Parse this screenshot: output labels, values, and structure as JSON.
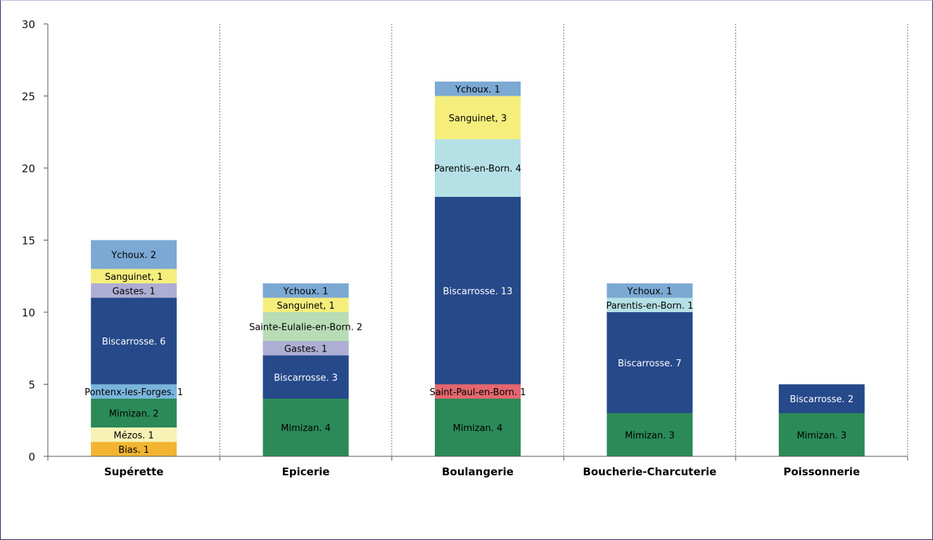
{
  "chart_data": {
    "type": "bar",
    "stacked": true,
    "categories": [
      "Supérette",
      "Epicerie",
      "Boulangerie",
      "Boucherie-Charcuterie",
      "Poissonnerie"
    ],
    "ylim": [
      0,
      30
    ],
    "yticks": [
      0,
      5,
      10,
      15,
      20,
      25,
      30
    ],
    "grid": "vertical dotted separators between categories",
    "stacks": [
      [
        {
          "label": "Bias. 1",
          "value": 1,
          "color": "#f2b431",
          "text_color": "#000000"
        },
        {
          "label": "Mézos. 1",
          "value": 1,
          "color": "#f7f3b6",
          "text_color": "#000000"
        },
        {
          "label": "Mimizan. 2",
          "value": 2,
          "color": "#2b8a57",
          "text_color": "#000000"
        },
        {
          "label": "Pontenx-les-Forges. 1",
          "value": 1,
          "color": "#7ab5dc",
          "text_color": "#000000"
        },
        {
          "label": "Biscarrosse. 6",
          "value": 6,
          "color": "#26498a",
          "text_color": "#ffffff"
        },
        {
          "label": "Gastes. 1",
          "value": 1,
          "color": "#aeaed4",
          "text_color": "#000000"
        },
        {
          "label": "Sanguinet, 1",
          "value": 1,
          "color": "#f5ee7d",
          "text_color": "#000000"
        },
        {
          "label": "Ychoux. 2",
          "value": 2,
          "color": "#7ba9d4",
          "text_color": "#000000"
        }
      ],
      [
        {
          "label": "Mimizan. 4",
          "value": 4,
          "color": "#2b8a57",
          "text_color": "#000000"
        },
        {
          "label": "Biscarrosse. 3",
          "value": 3,
          "color": "#26498a",
          "text_color": "#ffffff"
        },
        {
          "label": "Gastes. 1",
          "value": 1,
          "color": "#aeaed4",
          "text_color": "#000000"
        },
        {
          "label": "Sainte-Eulalie-en-Born. 2",
          "value": 2,
          "color": "#b8dcb6",
          "text_color": "#000000"
        },
        {
          "label": "Sanguinet, 1",
          "value": 1,
          "color": "#f5ee7d",
          "text_color": "#000000"
        },
        {
          "label": "Ychoux. 1",
          "value": 1,
          "color": "#7ba9d4",
          "text_color": "#000000"
        }
      ],
      [
        {
          "label": "Mimizan. 4",
          "value": 4,
          "color": "#2b8a57",
          "text_color": "#000000"
        },
        {
          "label": "Saint-Paul-en-Born. 1",
          "value": 1,
          "color": "#e4676e",
          "text_color": "#000000"
        },
        {
          "label": "Biscarrosse. 13",
          "value": 13,
          "color": "#26498a",
          "text_color": "#ffffff"
        },
        {
          "label": "Parentis-en-Born. 4",
          "value": 4,
          "color": "#b5e0e6",
          "text_color": "#000000"
        },
        {
          "label": "Sanguinet, 3",
          "value": 3,
          "color": "#f5ee7d",
          "text_color": "#000000"
        },
        {
          "label": "Ychoux. 1",
          "value": 1,
          "color": "#7ba9d4",
          "text_color": "#000000"
        }
      ],
      [
        {
          "label": "Mimizan. 3",
          "value": 3,
          "color": "#2b8a57",
          "text_color": "#000000"
        },
        {
          "label": "Biscarrosse. 7",
          "value": 7,
          "color": "#26498a",
          "text_color": "#ffffff"
        },
        {
          "label": "Parentis-en-Born. 1",
          "value": 1,
          "color": "#b5e0e6",
          "text_color": "#000000"
        },
        {
          "label": "Ychoux. 1",
          "value": 1,
          "color": "#7ba9d4",
          "text_color": "#000000"
        }
      ],
      [
        {
          "label": "Mimizan. 3",
          "value": 3,
          "color": "#2b8a57",
          "text_color": "#000000"
        },
        {
          "label": "Biscarrosse. 2",
          "value": 2,
          "color": "#26498a",
          "text_color": "#ffffff"
        }
      ]
    ]
  }
}
